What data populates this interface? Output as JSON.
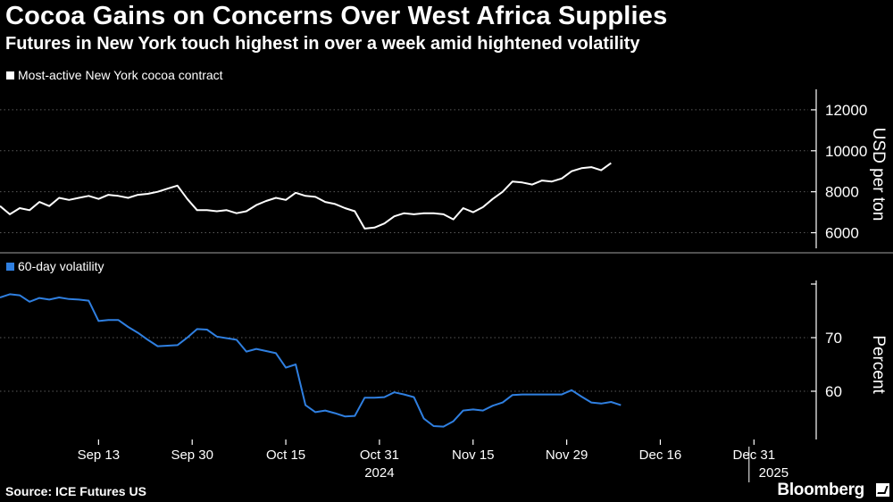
{
  "title": "Cocoa Gains on Concerns Over West Africa Supplies",
  "subtitle": "Futures in New York touch highest in over a week amid hightened volatility",
  "source": "Source: ICE Futures US",
  "brand": "Bloomberg",
  "colors": {
    "background": "#000000",
    "price_line": "#ffffff",
    "volatility_line": "#2f7fe0",
    "grid": "#5a5a5a",
    "divider": "#6a6a6a"
  },
  "chart_data": [
    {
      "type": "line",
      "title": "",
      "legend": "Most-active New York cocoa contract",
      "ylabel": "USD per ton",
      "ylim": [
        5500,
        13000
      ],
      "yticks": [
        6000,
        8000,
        10000,
        12000
      ],
      "ytick_labels": [
        "6000",
        "8000",
        "10000",
        "12000"
      ],
      "x_range": [
        0,
        126
      ],
      "series": [
        {
          "name": "Most-active New York cocoa contract",
          "x": [
            0,
            2,
            4,
            6,
            8,
            10,
            12,
            14,
            16,
            18,
            20,
            22,
            24,
            26,
            28,
            30,
            32,
            34,
            36,
            38,
            40,
            42,
            44,
            46,
            48,
            50,
            52,
            54,
            56,
            58,
            60,
            62,
            64,
            66,
            68,
            70,
            72,
            74,
            76,
            78,
            80,
            82,
            84,
            86,
            88,
            90,
            92,
            94,
            96,
            98,
            100,
            102,
            104,
            106,
            108,
            110,
            112,
            114,
            116,
            118,
            120,
            122,
            124
          ],
          "values": [
            7300,
            6900,
            7200,
            7100,
            7500,
            7300,
            7700,
            7600,
            7700,
            7800,
            7650,
            7850,
            7800,
            7700,
            7850,
            7900,
            8000,
            8150,
            8300,
            7650,
            7100,
            7100,
            7050,
            7100,
            6950,
            7050,
            7350,
            7550,
            7700,
            7600,
            7950,
            7800,
            7750,
            7500,
            7400,
            7200,
            7050,
            6200,
            6250,
            6450,
            6800,
            6950,
            6900,
            6950,
            6950,
            6900,
            6650,
            7200,
            7000,
            7250,
            7650,
            8000,
            8500,
            8450,
            8350,
            8550,
            8500,
            8650,
            9000,
            9150,
            9200,
            9050,
            9400
          ]
        }
      ]
    },
    {
      "type": "line",
      "title": "",
      "legend": "60-day volatility",
      "ylabel": "Percent",
      "ylim": [
        51,
        80
      ],
      "yticks": [
        60,
        70
      ],
      "ytick_labels": [
        "60",
        "70"
      ],
      "x_range": [
        0,
        126
      ],
      "x": [
        0,
        2,
        4,
        6,
        8,
        10,
        12,
        14,
        16,
        18,
        20,
        22,
        24,
        26,
        28,
        30,
        32,
        34,
        36,
        38,
        40,
        42,
        44,
        46,
        48,
        50,
        52,
        54,
        56,
        58,
        60,
        62,
        64,
        66,
        68,
        70,
        72,
        74,
        76,
        78,
        80,
        82,
        84,
        86,
        88,
        90,
        92,
        94,
        96,
        98,
        100,
        102,
        104,
        106,
        108,
        110,
        112,
        114,
        116,
        118,
        120,
        122,
        124,
        126
      ],
      "values": [
        77.5,
        78.1,
        77.9,
        76.7,
        77.4,
        77.1,
        77.5,
        77.2,
        77.1,
        76.9,
        73.1,
        73.3,
        73.3,
        72.0,
        70.9,
        69.6,
        68.4,
        68.5,
        68.6,
        70.0,
        71.6,
        71.5,
        70.2,
        69.9,
        69.6,
        67.4,
        67.9,
        67.5,
        67.1,
        64.4,
        65.0,
        57.4,
        56.1,
        56.4,
        55.9,
        55.3,
        55.4,
        58.8,
        58.8,
        58.9,
        59.8,
        59.4,
        58.9,
        54.9,
        53.5,
        53.4,
        54.4,
        56.4,
        56.6,
        56.4,
        57.3,
        57.9,
        59.3,
        59.4,
        59.4,
        59.4,
        59.4,
        59.4,
        60.2,
        59.0,
        57.9,
        57.7,
        58.0,
        57.4
      ],
      "series": [
        {
          "name": "60-day volatility"
        }
      ]
    }
  ],
  "x_axis": {
    "ticks": [
      {
        "x": 20,
        "label": "Sep 13"
      },
      {
        "x": 39,
        "label": "Sep 30"
      },
      {
        "x": 58,
        "label": "Oct 15"
      },
      {
        "x": 77,
        "label": "Oct 31"
      },
      {
        "x": 96,
        "label": "Nov 15"
      },
      {
        "x": 115,
        "label": "Nov 29"
      },
      {
        "x": 134,
        "label": "Dec 16"
      },
      {
        "x": 153,
        "label": "Dec 31"
      }
    ],
    "year_labels": [
      {
        "x": 77,
        "label": "2024"
      },
      {
        "x": 157,
        "label": "2025"
      }
    ],
    "range": [
      0,
      164
    ]
  }
}
